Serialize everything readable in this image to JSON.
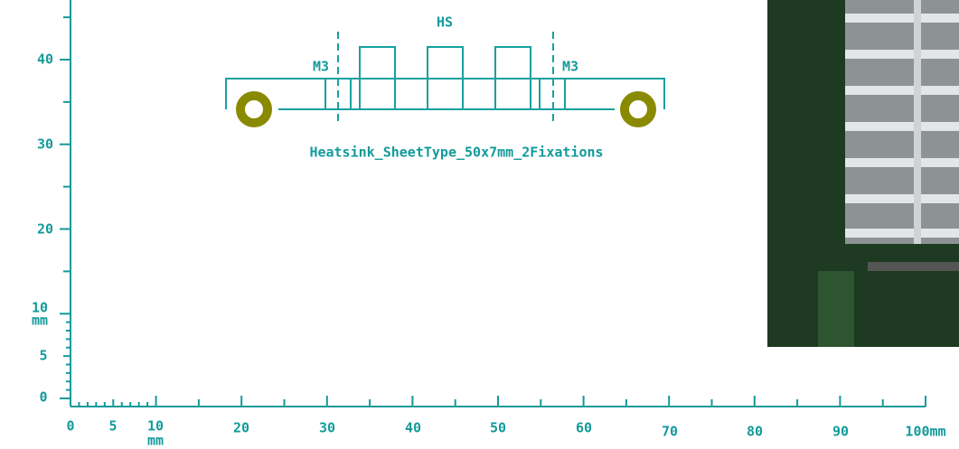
{
  "ruler_y": {
    "labels": [
      "40",
      "30",
      "20",
      "10",
      "mm",
      "5",
      "0"
    ]
  },
  "ruler_x": {
    "labels": [
      "0",
      "5",
      "10",
      "mm",
      "20",
      "30",
      "40",
      "50",
      "60",
      "70",
      "80",
      "90",
      "100mm"
    ]
  },
  "footprint": {
    "body_label": "HS",
    "left_hole_label": "M3",
    "right_hole_label": "M3",
    "name": "Heatsink_SheetType_50x7mm_2Fixations"
  }
}
